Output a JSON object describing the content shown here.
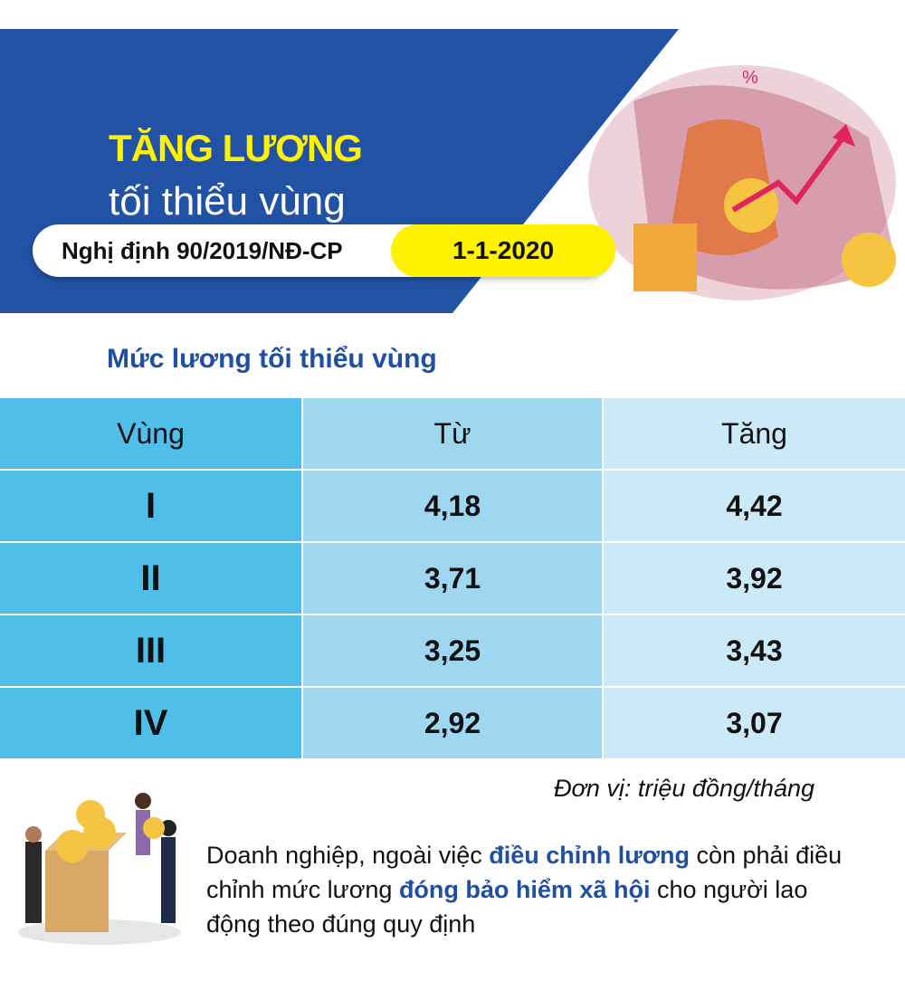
{
  "header": {
    "title_line1": "TĂNG LƯƠNG",
    "title_line2": "tối thiểu vùng",
    "decree": "Nghị định 90/2019/NĐ-CP",
    "effective_date": "1-1-2020"
  },
  "section_title": "Mức lương tối thiểu vùng",
  "table": {
    "headers": [
      "Vùng",
      "Từ",
      "Tăng"
    ],
    "rows": [
      {
        "region": "I",
        "from": "4,18",
        "to": "4,42"
      },
      {
        "region": "II",
        "from": "3,71",
        "to": "3,92"
      },
      {
        "region": "III",
        "from": "3,25",
        "to": "3,43"
      },
      {
        "region": "IV",
        "from": "2,92",
        "to": "3,07"
      }
    ]
  },
  "unit": "Đơn vị: triệu đồng/tháng",
  "note": {
    "part1": "Doanh nghiệp, ngoài việc ",
    "highlight1": "điều chỉnh lương",
    "part2": " còn phải điều chỉnh mức lương ",
    "highlight2": "đóng bảo hiểm xã hội",
    "part3": " cho người lao động theo đúng quy định"
  },
  "colors": {
    "banner_blue": "#2152a3",
    "title_yellow": "#fff200",
    "accent_blue": "#1f4fa0",
    "col1": "#4fbfe9",
    "col2": "#9fd7f1",
    "col3": "#cbe9f7"
  }
}
